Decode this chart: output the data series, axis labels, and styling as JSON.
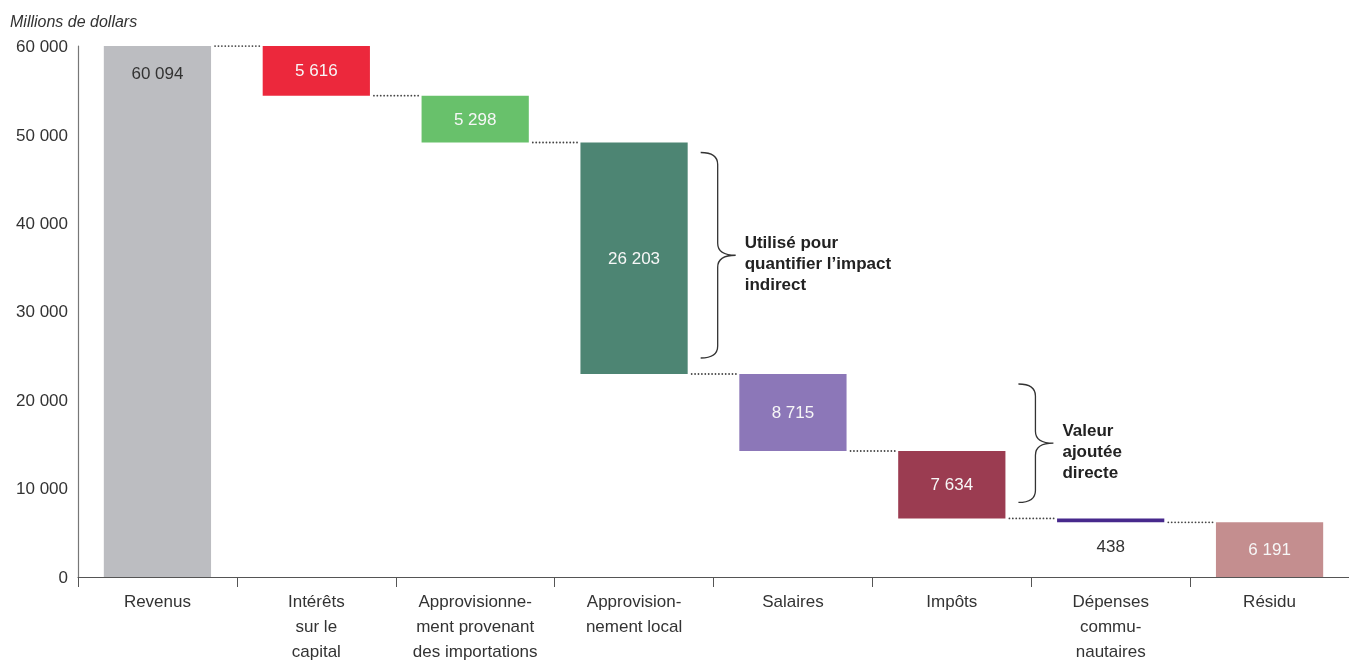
{
  "chart_data": {
    "type": "bar",
    "ylabel": "Millions de dollars",
    "categories": [
      "Revenus",
      "Intérêts\nsur le\ncapital",
      "Approvisionne-\nment provenant\ndes importations",
      "Approvision-\nnement local",
      "Salaires",
      "Impôts",
      "Dépenses\ncommu-\nnautaires",
      "Résidu"
    ],
    "values": [
      60094,
      5616,
      5298,
      26203,
      8715,
      7634,
      438,
      6191
    ],
    "base": [
      0,
      54478,
      49180,
      22977,
      14262,
      6628,
      6190,
      0
    ],
    "colors": [
      "#bcbdc1",
      "#ec283c",
      "#68c16b",
      "#4d8573",
      "#8c77b8",
      "#9b3c51",
      "#47298c",
      "#c48e8f"
    ],
    "value_labels": [
      "60 094",
      "5 616",
      "5 298",
      "26 203",
      "8 715",
      "7 634",
      "438",
      "6 191"
    ],
    "ylim": [
      0,
      60100
    ],
    "yticks": [
      0,
      {
        "value": 10000,
        "label": "10 000"
      },
      {
        "value": 20000,
        "label": "20 000"
      },
      {
        "value": 30000,
        "label": "30 000"
      },
      {
        "value": 40000,
        "label": "40 000"
      },
      {
        "value": 50000,
        "label": "50 000"
      },
      {
        "value": 60000,
        "label": "60 000"
      }
    ],
    "grid": false,
    "annotations": [
      "Utilisé pour\nquantifier l’impact\nindirect",
      "Valeur\najoutée\ndirecte"
    ]
  }
}
